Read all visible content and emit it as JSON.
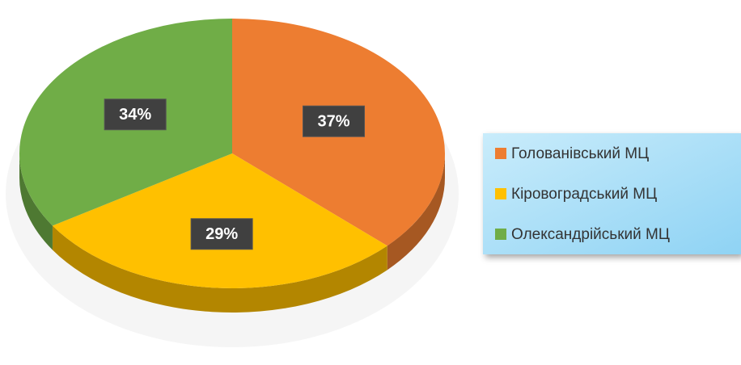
{
  "chart_data": {
    "type": "pie",
    "categories": [
      "Голованівський МЦ",
      "Кіровоградський МЦ",
      "Олександрійський МЦ"
    ],
    "values": [
      37,
      29,
      34
    ],
    "value_labels": [
      "37%",
      "29%",
      "34%"
    ],
    "colors": [
      "#ed7d31",
      "#ffc000",
      "#70ad47"
    ],
    "legend": "right"
  }
}
